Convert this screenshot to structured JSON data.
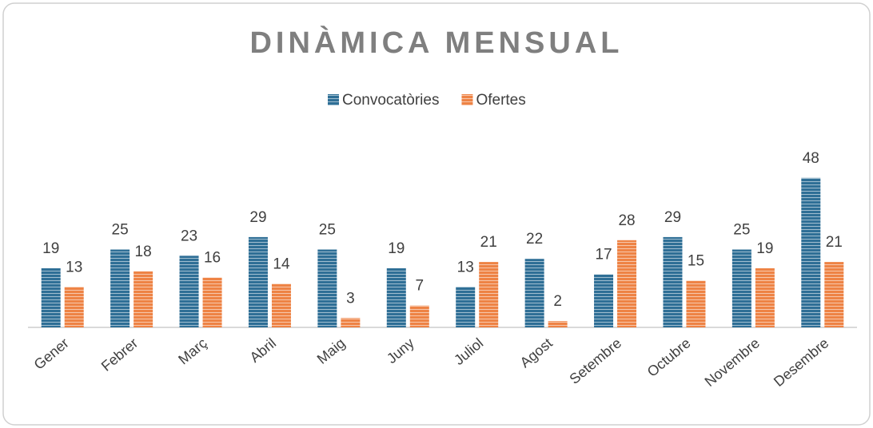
{
  "chart_data": {
    "type": "bar",
    "title": "DINÀMICA MENSUAL",
    "categories": [
      "Gener",
      "Febrer",
      "Març",
      "Abril",
      "Maig",
      "Juny",
      "Juliol",
      "Agost",
      "Setembre",
      "Octubre",
      "Novembre",
      "Desembre"
    ],
    "series": [
      {
        "name": "Convocatòries",
        "color": "#2f6f96",
        "values": [
          19,
          25,
          23,
          29,
          25,
          19,
          13,
          22,
          17,
          29,
          25,
          48
        ]
      },
      {
        "name": "Ofertes",
        "color": "#ee8345",
        "values": [
          13,
          18,
          16,
          14,
          3,
          7,
          21,
          2,
          28,
          15,
          19,
          21
        ]
      }
    ],
    "ylim": [
      0,
      50
    ],
    "legend": "top"
  }
}
